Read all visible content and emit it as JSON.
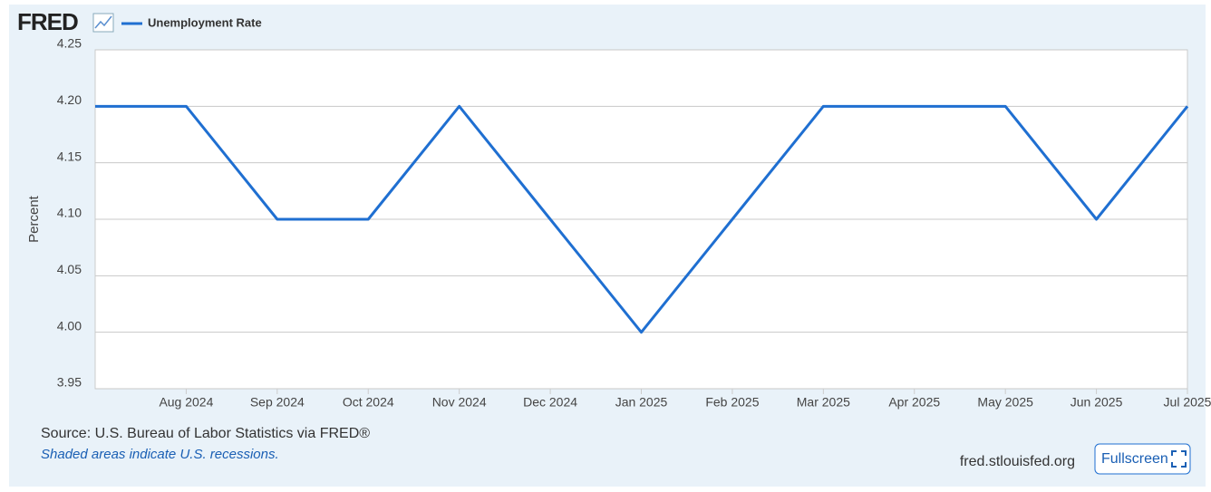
{
  "logo": "FRED",
  "chart_data": {
    "type": "line",
    "categories": [
      null,
      "Aug 2024",
      "Sep 2024",
      "Oct 2024",
      "Nov 2024",
      "Dec 2024",
      "Jan 2025",
      "Feb 2025",
      "Mar 2025",
      "Apr 2025",
      "May 2025",
      "Jun 2025",
      "Jul 2025"
    ],
    "series": [
      {
        "name": "Unemployment Rate",
        "color": "#1f6fd1",
        "values": [
          4.2,
          4.2,
          4.1,
          4.1,
          4.2,
          4.1,
          4.0,
          4.1,
          4.2,
          4.2,
          4.2,
          4.1,
          4.2
        ]
      }
    ],
    "y_label": "Percent",
    "ylim": [
      3.95,
      4.25
    ],
    "yticks": [
      3.95,
      4.05,
      {
        "value": 4.0,
        "label": "4.00"
      },
      {
        "value": 4.1,
        "label": "4.10"
      },
      4.15,
      {
        "value": 4.2,
        "label": "4.20"
      },
      4.25
    ],
    "grid": true
  },
  "source": "Source: U.S. Bureau of Labor Statistics via FRED®",
  "note": "Shaded areas indicate U.S. recessions.",
  "site": "fred.stlouisfed.org",
  "fullscreen_button": "Fullscreen"
}
